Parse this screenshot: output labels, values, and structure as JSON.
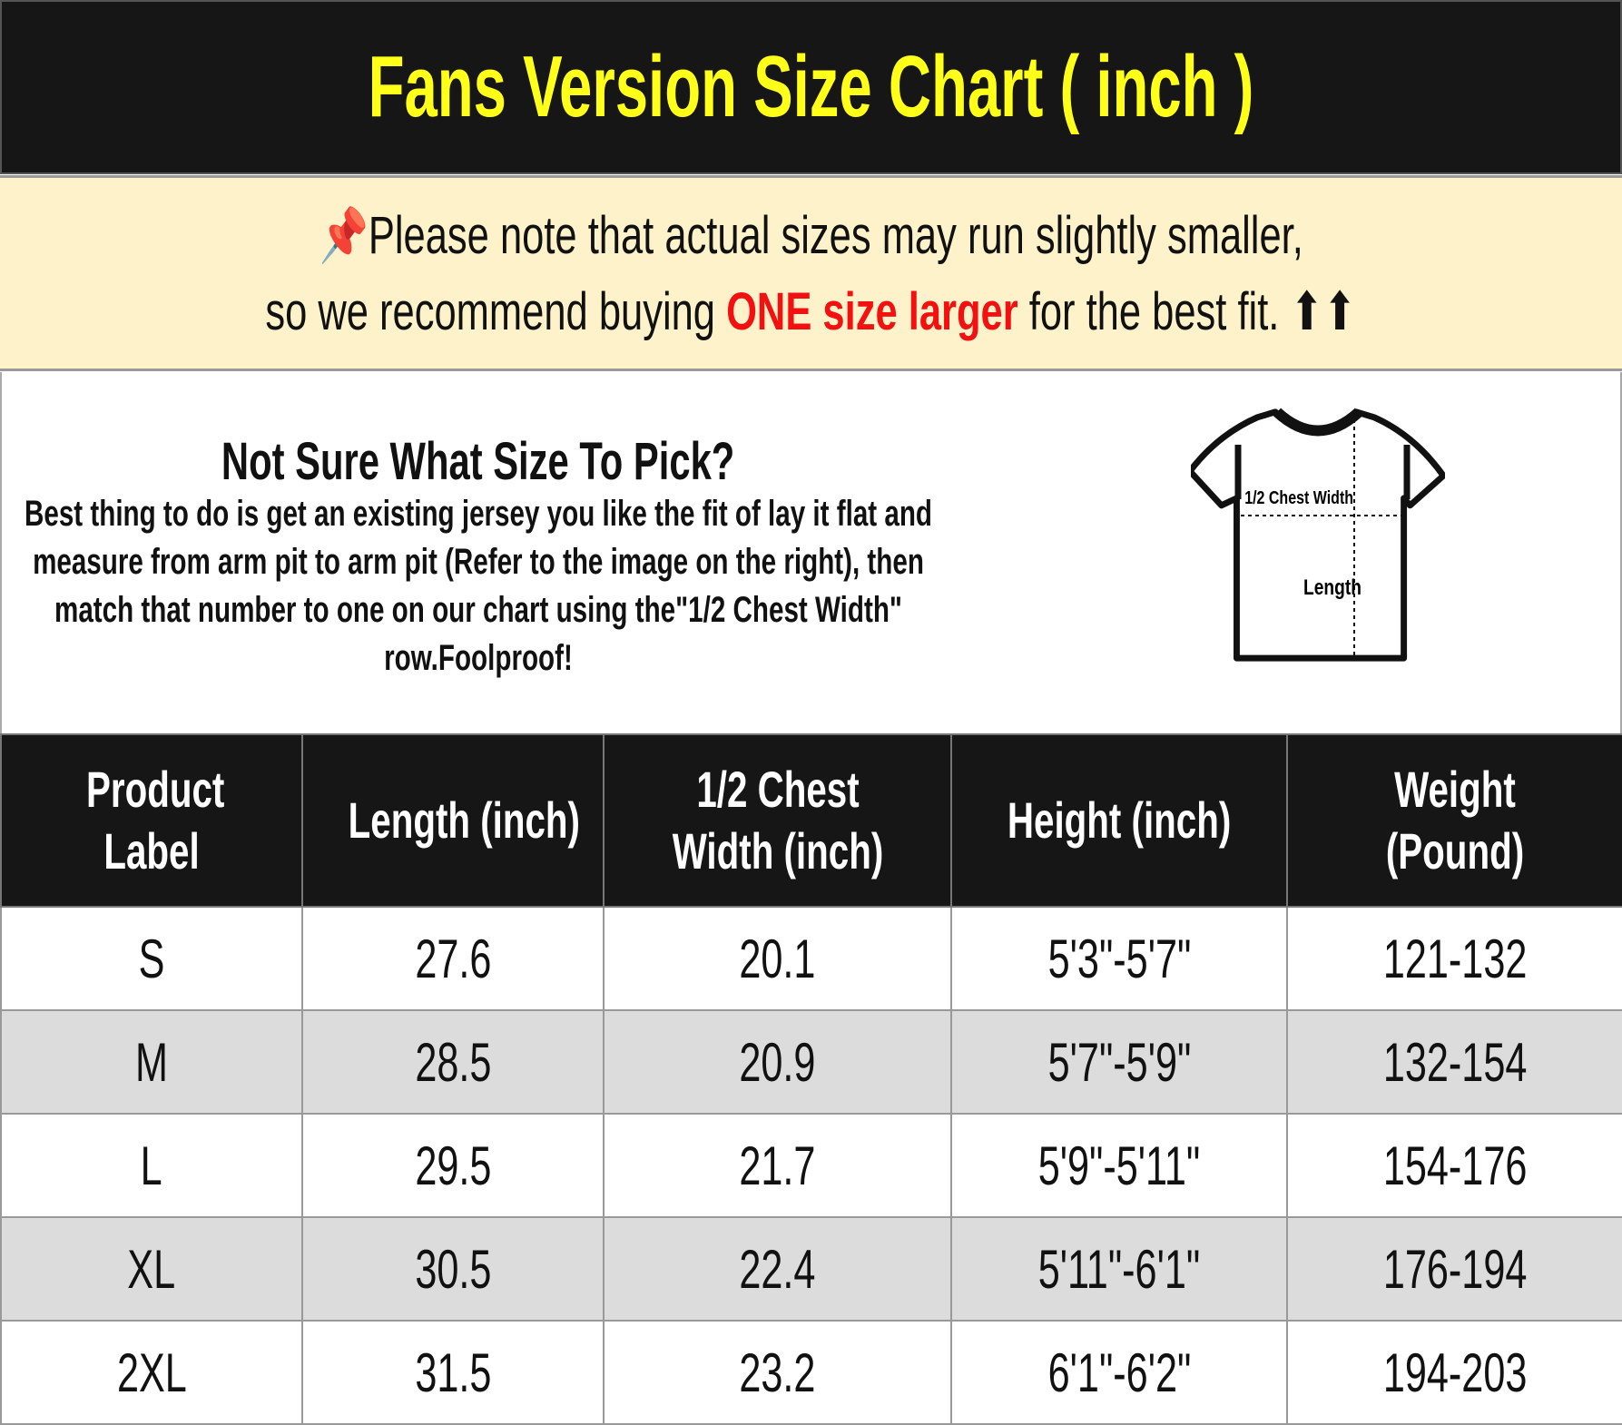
{
  "title": "Fans Version Size Chart ( inch )",
  "note": {
    "icon": "pushpin-icon",
    "line1": "Please note that actual sizes may run slightly smaller,",
    "line2_pre": "so we recommend buying ",
    "line2_highlight": "ONE size larger",
    "line2_post": " for the best fit. ⬆⬆",
    "highlight_color": "#f21010"
  },
  "info": {
    "heading": "Not Sure What Size To Pick?",
    "body": "Best thing to do is get an existing jersey you like the fit of lay it flat and measure from arm pit to arm pit (Refer to the image on the right), then match that number to one on our chart using the\"1/2 Chest Width\" row.Foolproof!",
    "diagram": {
      "chest_label": "1/2 Chest Width",
      "length_label": "Length"
    }
  },
  "table": {
    "headers": [
      "Product Label",
      "Length (inch)",
      "1/2 Chest Width (inch)",
      "Height (inch)",
      "Weight (Pound)"
    ],
    "rows": [
      [
        "S",
        "27.6",
        "20.1",
        "5'3\"-5'7\"",
        "121-132"
      ],
      [
        "M",
        "28.5",
        "20.9",
        "5'7\"-5'9\"",
        "132-154"
      ],
      [
        "L",
        "29.5",
        "21.7",
        "5'9\"-5'11\"",
        "154-176"
      ],
      [
        "XL",
        "30.5",
        "22.4",
        "5'11\"-6'1\"",
        "176-194"
      ],
      [
        "2XL",
        "31.5",
        "23.2",
        "6'1\"-6'2\"",
        "194-203"
      ]
    ]
  },
  "colors": {
    "title_bg": "#161616",
    "title_text": "#ffff1a",
    "note_bg": "#fdf2c9",
    "alt_row": "#dcdcdc"
  }
}
